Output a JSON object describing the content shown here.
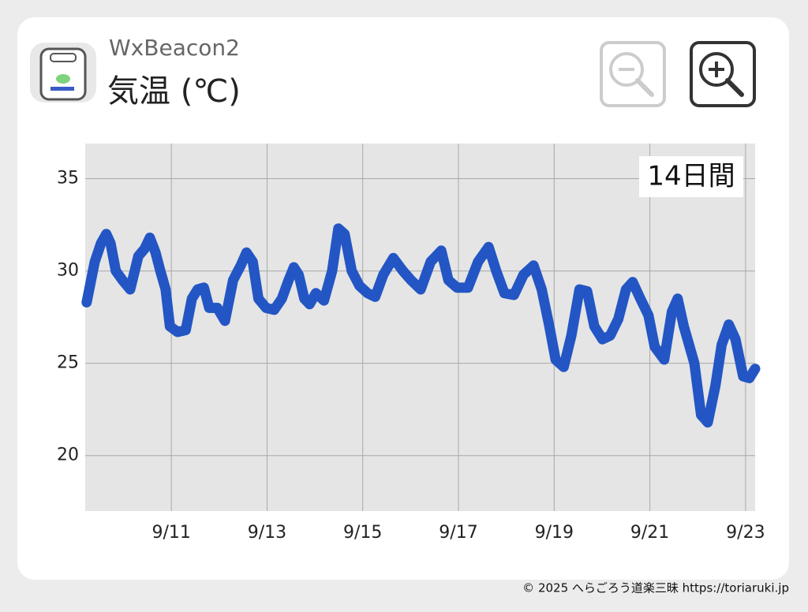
{
  "header": {
    "device": "WxBeacon2",
    "title": "気温 (℃)"
  },
  "chart_data": {
    "type": "line",
    "annotation": "14日間",
    "color": "#2356c4",
    "grid": true,
    "x": [
      9.23,
      9.4,
      9.53,
      9.64,
      9.73,
      9.84,
      9.98,
      10.14,
      10.31,
      10.44,
      10.55,
      10.67,
      10.77,
      10.88,
      10.97,
      11.13,
      11.3,
      11.43,
      11.55,
      11.68,
      11.79,
      11.96,
      12.12,
      12.29,
      12.45,
      12.57,
      12.7,
      12.82,
      12.98,
      13.15,
      13.31,
      13.45,
      13.56,
      13.66,
      13.78,
      13.89,
      14.02,
      14.19,
      14.36,
      14.49,
      14.62,
      14.77,
      14.93,
      15.1,
      15.26,
      15.43,
      15.64,
      15.84,
      16.01,
      16.21,
      16.42,
      16.64,
      16.79,
      16.97,
      17.2,
      17.41,
      17.63,
      17.79,
      17.96,
      18.16,
      18.36,
      18.57,
      18.74,
      18.9,
      19.03,
      19.2,
      19.36,
      19.53,
      19.69,
      19.84,
      20.01,
      20.17,
      20.34,
      20.5,
      20.64,
      20.8,
      20.97,
      21.1,
      21.3,
      21.46,
      21.58,
      21.71,
      21.93,
      22.07,
      22.21,
      22.37,
      22.5,
      22.65,
      22.79,
      22.95,
      23.08,
      23.2
    ],
    "values": [
      28.3,
      30.5,
      31.5,
      32.0,
      31.5,
      30.0,
      29.5,
      29.0,
      30.8,
      31.2,
      31.8,
      31.0,
      30.0,
      29.0,
      27.0,
      26.7,
      26.8,
      28.5,
      29.0,
      29.1,
      28.0,
      28.0,
      27.3,
      29.5,
      30.3,
      31.0,
      30.5,
      28.5,
      28.0,
      27.9,
      28.5,
      29.5,
      30.2,
      29.8,
      28.5,
      28.2,
      28.8,
      28.4,
      30.0,
      32.3,
      32.0,
      30.0,
      29.2,
      28.8,
      28.6,
      29.8,
      30.7,
      30.0,
      29.5,
      29.0,
      30.5,
      31.1,
      29.5,
      29.1,
      29.1,
      30.5,
      31.3,
      30.0,
      28.8,
      28.7,
      29.8,
      30.3,
      29.0,
      27.0,
      25.2,
      24.8,
      26.5,
      29.0,
      28.9,
      27.0,
      26.3,
      26.5,
      27.4,
      29.0,
      29.4,
      28.5,
      27.6,
      25.9,
      25.2,
      27.8,
      28.5,
      27.0,
      25.0,
      22.2,
      21.8,
      23.8,
      26.0,
      27.1,
      26.3,
      24.3,
      24.2,
      24.7
    ],
    "xlim": [
      9.2,
      23.2
    ],
    "xticks": [
      {
        "value": 11,
        "label": "9/11"
      },
      {
        "value": 13,
        "label": "9/13"
      },
      {
        "value": 15,
        "label": "9/15"
      },
      {
        "value": 17,
        "label": "9/17"
      },
      {
        "value": 19,
        "label": "9/19"
      },
      {
        "value": 21,
        "label": "9/21"
      },
      {
        "value": 23,
        "label": "9/23"
      }
    ],
    "ylim": [
      17,
      36.9
    ],
    "yticks": [
      20,
      25,
      30,
      35
    ]
  },
  "footer": {
    "credit": "© 2025 へらごろう道楽三昧 https://toriaruki.jp"
  }
}
